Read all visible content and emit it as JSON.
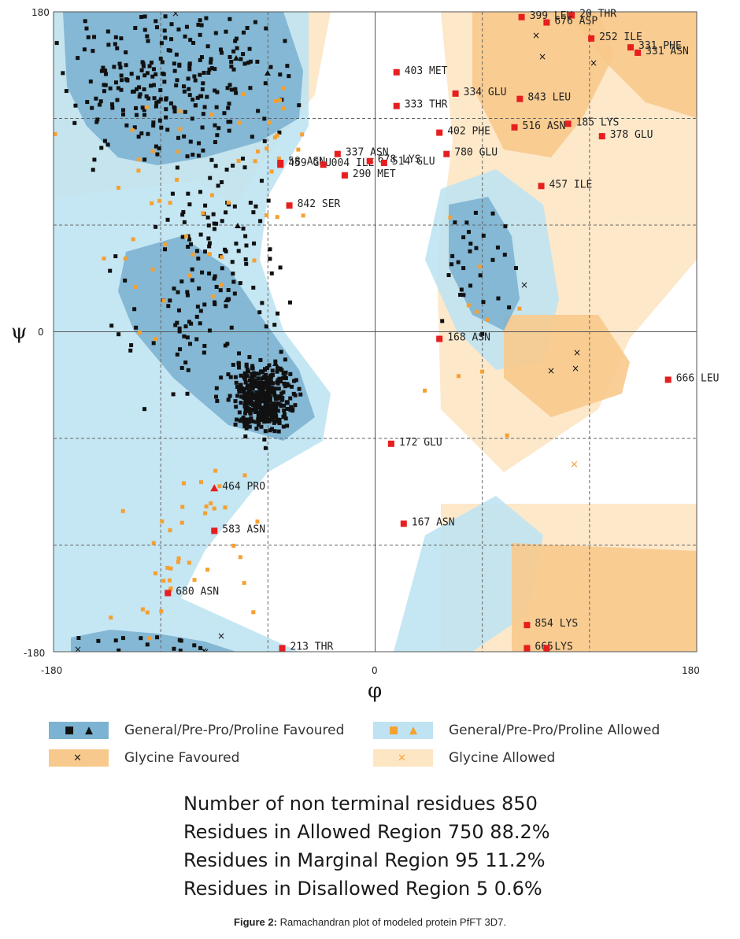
{
  "chart_data": {
    "type": "scatter",
    "subtype": "ramachandran",
    "xlabel": "φ",
    "ylabel": "ψ",
    "xlim": [
      -180,
      180
    ],
    "ylim": [
      -180,
      180
    ],
    "x_ticks": [
      "-180",
      "0",
      "180"
    ],
    "y_ticks": [
      "180",
      "0",
      "-180"
    ],
    "grid": "dashed at -120, -60, 60, 120 and solid at 0",
    "region_colors": {
      "general_favoured": "#7cb3d2",
      "general_allowed": "#bfe3f2",
      "glycine_favoured": "#f8c98c",
      "glycine_allowed": "#fde6c4",
      "favoured_point": "#111111",
      "allowed_point": "#f5a030",
      "outlier_point": "#e61e1e"
    },
    "outliers": [
      {
        "label": "399 LEU",
        "phi": 82,
        "psi": 177
      },
      {
        "label": "20 THR",
        "phi": 110,
        "psi": 178
      },
      {
        "label": "676 ASP",
        "phi": 96,
        "psi": 174
      },
      {
        "label": "252 ILE",
        "phi": 121,
        "psi": 165
      },
      {
        "label": "331 PHE",
        "phi": 143,
        "psi": 160
      },
      {
        "label": "331 ASN",
        "phi": 147,
        "psi": 157
      },
      {
        "label": "403 MET",
        "phi": 12,
        "psi": 146
      },
      {
        "label": "334 GLU",
        "phi": 45,
        "psi": 134
      },
      {
        "label": "843 LEU",
        "phi": 81,
        "psi": 131
      },
      {
        "label": "333 THR",
        "phi": 12,
        "psi": 127
      },
      {
        "label": "516 ASN",
        "phi": 78,
        "psi": 115
      },
      {
        "label": "185 LYS",
        "phi": 108,
        "psi": 117
      },
      {
        "label": "402 PHE",
        "phi": 36,
        "psi": 112
      },
      {
        "label": "378 GLU",
        "phi": 127,
        "psi": 110
      },
      {
        "label": "780 GLU",
        "phi": 40,
        "psi": 100
      },
      {
        "label": "58 ASN",
        "phi": -53,
        "psi": 95
      },
      {
        "label": "459 GLU",
        "phi": -53,
        "psi": 94
      },
      {
        "label": "337 ASN",
        "phi": -21,
        "psi": 100
      },
      {
        "label": "004 ILE",
        "phi": -29,
        "psi": 94
      },
      {
        "label": "678 LYS",
        "phi": -3,
        "psi": 96
      },
      {
        "label": "514 GLU",
        "phi": 5,
        "psi": 95
      },
      {
        "label": "290 MET",
        "phi": -17,
        "psi": 88
      },
      {
        "label": "457 ILE",
        "phi": 93,
        "psi": 82
      },
      {
        "label": "842 SER",
        "phi": -48,
        "psi": 71
      },
      {
        "label": "168 ASN",
        "phi": 36,
        "psi": -4
      },
      {
        "label": "666 LEU",
        "phi": 164,
        "psi": -27
      },
      {
        "label": "172 GLU",
        "phi": 9,
        "psi": -63
      },
      {
        "label": "464 PRO",
        "phi": -90,
        "psi": -88
      },
      {
        "label": "583 ASN",
        "phi": -90,
        "psi": -112
      },
      {
        "label": "167 ASN",
        "phi": 16,
        "psi": -108
      },
      {
        "label": "680 ASN",
        "phi": -116,
        "psi": -147
      },
      {
        "label": "854 LYS",
        "phi": 85,
        "psi": -165
      },
      {
        "label": "213 THR",
        "phi": -52,
        "psi": -178
      },
      {
        "label": "665",
        "phi": 85,
        "psi": -178
      },
      {
        "label": "LYS",
        "phi": 96,
        "psi": -178
      }
    ]
  },
  "legend": [
    {
      "label": "General/Pre-Pro/Proline Favoured"
    },
    {
      "label": "General/Pre-Pro/Proline Allowed"
    },
    {
      "label": "Glycine Favoured"
    },
    {
      "label": "Glycine Allowed"
    }
  ],
  "stats": {
    "line1": "Number of non terminal residues 850",
    "line2": "Residues in Allowed Region 750 88.2%",
    "line3": "Residues in Marginal Region 95 11.2%",
    "line4": "Residues in Disallowed Region 5 0.6%"
  },
  "caption": {
    "label": "Figure 2:",
    "text": " Ramachandran plot of modeled protein PfFT 3D7."
  }
}
